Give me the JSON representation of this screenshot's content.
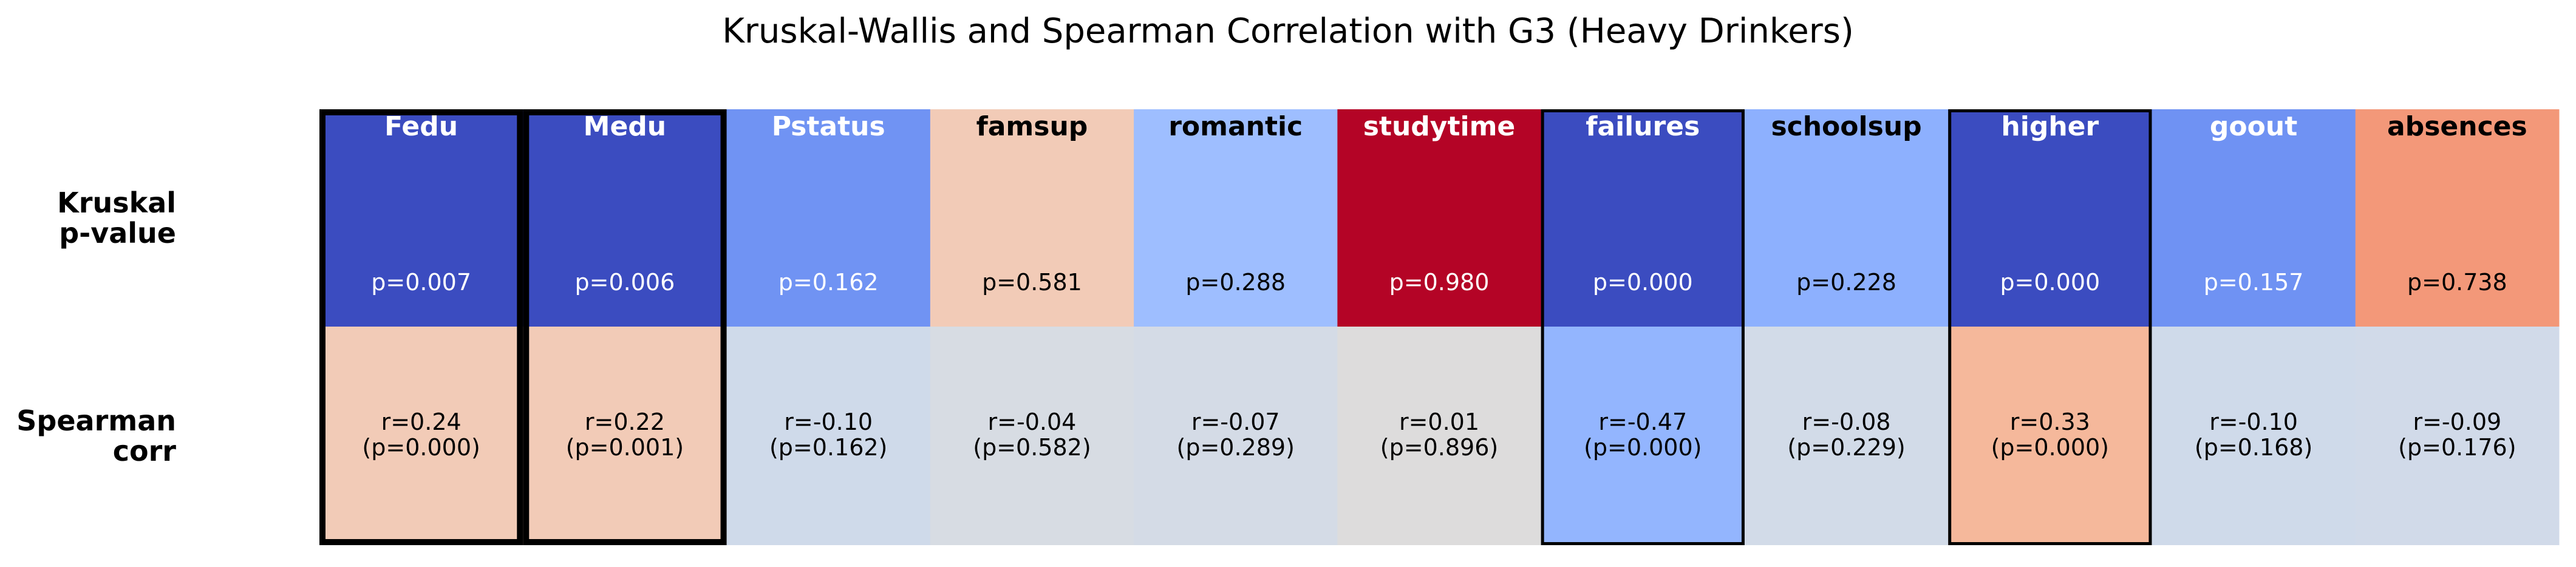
{
  "chart_data": {
    "type": "heatmap",
    "title": "Kruskal-Wallis and Spearman Correlation with G3 (Heavy Drinkers)",
    "row_labels": [
      [
        "Kruskal",
        "p-value"
      ],
      [
        "Spearman",
        "corr"
      ]
    ],
    "columns": [
      {
        "name": "Fedu",
        "kruskal_p": 0.007,
        "spearman_r": 0.24,
        "spearman_p": 0.0,
        "kruskal_color": "#3b4cc0",
        "spearman_color": "#f2cbb7",
        "highlight": "thick"
      },
      {
        "name": "Medu",
        "kruskal_p": 0.006,
        "spearman_r": 0.22,
        "spearman_p": 0.001,
        "kruskal_color": "#3b4cc0",
        "spearman_color": "#f2cbb7",
        "highlight": "thick"
      },
      {
        "name": "Pstatus",
        "kruskal_p": 0.162,
        "spearman_r": -0.1,
        "spearman_p": 0.162,
        "kruskal_color": "#7093f3",
        "spearman_color": "#cfdaea",
        "highlight": "none"
      },
      {
        "name": "famsup",
        "kruskal_p": 0.581,
        "spearman_r": -0.04,
        "spearman_p": 0.582,
        "kruskal_color": "#f2cbb7",
        "spearman_color": "#d7dce3",
        "highlight": "none"
      },
      {
        "name": "romantic",
        "kruskal_p": 0.288,
        "spearman_r": -0.07,
        "spearman_p": 0.289,
        "kruskal_color": "#9ebeff",
        "spearman_color": "#d4dbe6",
        "highlight": "none"
      },
      {
        "name": "studytime",
        "kruskal_p": 0.98,
        "spearman_r": 0.01,
        "spearman_p": 0.896,
        "kruskal_color": "#b40426",
        "spearman_color": "#dddcdc",
        "highlight": "none"
      },
      {
        "name": "failures",
        "kruskal_p": 0.0,
        "spearman_r": -0.47,
        "spearman_p": 0.0,
        "kruskal_color": "#3b4cc0",
        "spearman_color": "#93b5fe",
        "highlight": "thin"
      },
      {
        "name": "schoolsup",
        "kruskal_p": 0.228,
        "spearman_r": -0.08,
        "spearman_p": 0.229,
        "kruskal_color": "#8db0fe",
        "spearman_color": "#d2dbe8",
        "highlight": "none"
      },
      {
        "name": "higher",
        "kruskal_p": 0.0,
        "spearman_r": 0.33,
        "spearman_p": 0.0,
        "kruskal_color": "#3b4cc0",
        "spearman_color": "#f5b89b",
        "highlight": "thin"
      },
      {
        "name": "goout",
        "kruskal_p": 0.157,
        "spearman_r": -0.1,
        "spearman_p": 0.168,
        "kruskal_color": "#6f92f3",
        "spearman_color": "#cfdaea",
        "highlight": "none"
      },
      {
        "name": "absences",
        "kruskal_p": 0.738,
        "spearman_r": -0.09,
        "spearman_p": 0.176,
        "kruskal_color": "#f39879",
        "spearman_color": "#d1dae9",
        "highlight": "none"
      }
    ]
  }
}
